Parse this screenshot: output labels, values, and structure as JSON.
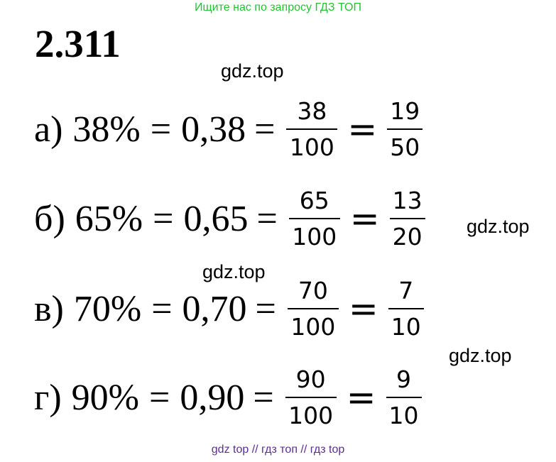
{
  "banner": "Ищите нас по запросу ГДЗ ТОП",
  "problem_number": "2.311",
  "watermark": "gdz.top",
  "rows": [
    {
      "label": "а)",
      "percent": "38%",
      "decimal": "0,38",
      "num1": "38",
      "den1": "100",
      "num2": "19",
      "den2": "50"
    },
    {
      "label": "б)",
      "percent": "65%",
      "decimal": "0,65",
      "num1": "65",
      "den1": "100",
      "num2": "13",
      "den2": "20"
    },
    {
      "label": "в)",
      "percent": "70%",
      "decimal": "0,70",
      "num1": "70",
      "den1": "100",
      "num2": "7",
      "den2": "10"
    },
    {
      "label": "г)",
      "percent": "90%",
      "decimal": "0,90",
      "num1": "90",
      "den1": "100",
      "num2": "9",
      "den2": "10"
    }
  ],
  "footer": "gdz top  //  гдз топ  //  гдз top"
}
